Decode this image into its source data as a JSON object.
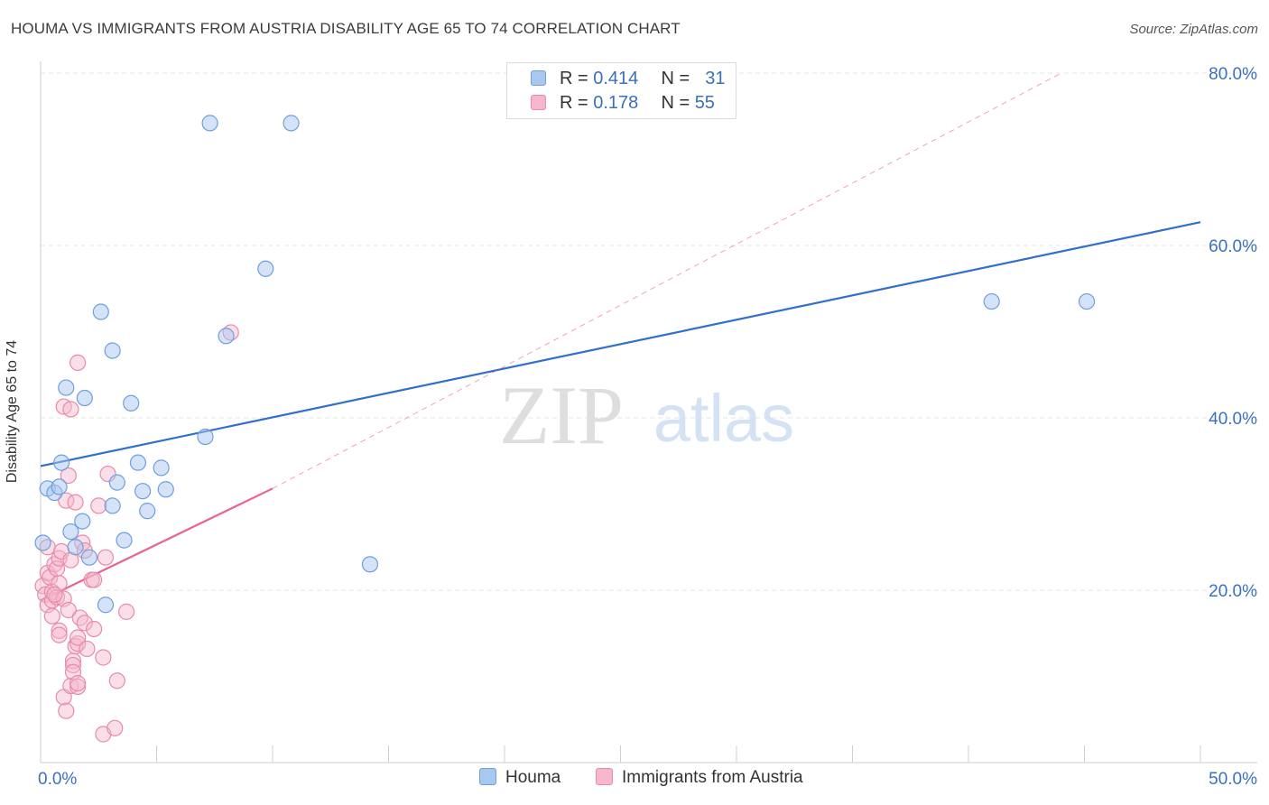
{
  "title": "HOUMA VS IMMIGRANTS FROM AUSTRIA DISABILITY AGE 65 TO 74 CORRELATION CHART",
  "source": "Source: ZipAtlas.com",
  "watermark": {
    "zip": "ZIP",
    "atlas": "atlas"
  },
  "colors": {
    "blue_fill": "#a9c8ef",
    "blue_stroke": "#6f9fdc",
    "blue_line": "#2f6fcd",
    "pink_fill": "#f5b8cb",
    "pink_stroke": "#e98aaa",
    "pink_line": "#e8658e",
    "grid": "#e4e4e4",
    "axis_text": "#3a70c0"
  },
  "legend": {
    "items": [
      {
        "r_label": "R =",
        "r_value": "0.414",
        "n_label": "N =",
        "n_value": "31"
      },
      {
        "r_label": "R =",
        "r_value": "0.178",
        "n_label": "N =",
        "n_value": "55"
      }
    ]
  },
  "bottom_legend": [
    "Houma",
    "Immigrants from Austria"
  ],
  "chart_data": {
    "type": "scatter",
    "title": "HOUMA VS IMMIGRANTS FROM AUSTRIA DISABILITY AGE 65 TO 74 CORRELATION CHART",
    "xlabel": "",
    "ylabel": "Disability Age 65 to 74",
    "xlim": [
      0,
      50
    ],
    "ylim": [
      0,
      80
    ],
    "x_tick_labels": [
      "0.0%",
      "50.0%"
    ],
    "y_ticks": [
      20,
      40,
      60,
      80
    ],
    "y_tick_labels": [
      "20.0%",
      "40.0%",
      "60.0%",
      "80.0%"
    ],
    "grid": true,
    "series": [
      {
        "name": "Houma",
        "color": "blue",
        "points": [
          [
            0.1,
            25.5
          ],
          [
            0.3,
            31.8
          ],
          [
            0.6,
            31.3
          ],
          [
            0.8,
            32.0
          ],
          [
            0.9,
            34.8
          ],
          [
            1.1,
            43.5
          ],
          [
            1.3,
            26.8
          ],
          [
            1.5,
            25.0
          ],
          [
            1.8,
            28.0
          ],
          [
            1.9,
            42.3
          ],
          [
            2.1,
            23.8
          ],
          [
            2.6,
            52.3
          ],
          [
            2.8,
            18.3
          ],
          [
            3.1,
            29.8
          ],
          [
            3.1,
            47.8
          ],
          [
            3.3,
            32.5
          ],
          [
            3.6,
            25.8
          ],
          [
            3.9,
            41.7
          ],
          [
            4.2,
            34.8
          ],
          [
            4.4,
            31.5
          ],
          [
            4.6,
            29.2
          ],
          [
            5.2,
            34.2
          ],
          [
            5.4,
            31.7
          ],
          [
            7.1,
            37.8
          ],
          [
            7.3,
            74.2
          ],
          [
            8.0,
            49.5
          ],
          [
            9.7,
            57.3
          ],
          [
            10.8,
            74.2
          ],
          [
            14.2,
            23.0
          ],
          [
            41.0,
            53.5
          ],
          [
            45.1,
            53.5
          ]
        ],
        "trend": {
          "x": [
            0,
            50
          ],
          "y": [
            34.4,
            62.7
          ],
          "style": "solid"
        }
      },
      {
        "name": "Immigrants from Austria",
        "color": "pink",
        "points": [
          [
            0.1,
            20.5
          ],
          [
            0.2,
            19.5
          ],
          [
            0.3,
            25.0
          ],
          [
            0.3,
            22.0
          ],
          [
            0.3,
            18.3
          ],
          [
            0.4,
            21.5
          ],
          [
            0.5,
            19.8
          ],
          [
            0.5,
            18.8
          ],
          [
            0.5,
            17.0
          ],
          [
            0.6,
            23.0
          ],
          [
            0.7,
            22.5
          ],
          [
            0.7,
            19.2
          ],
          [
            0.8,
            20.8
          ],
          [
            0.8,
            15.3
          ],
          [
            0.8,
            14.8
          ],
          [
            0.8,
            23.7
          ],
          [
            0.9,
            24.5
          ],
          [
            1.0,
            41.3
          ],
          [
            1.0,
            7.6
          ],
          [
            1.0,
            19.0
          ],
          [
            1.1,
            6.0
          ],
          [
            1.1,
            30.4
          ],
          [
            1.2,
            33.3
          ],
          [
            1.2,
            17.7
          ],
          [
            1.3,
            41.0
          ],
          [
            1.3,
            23.5
          ],
          [
            1.3,
            8.9
          ],
          [
            1.4,
            11.8
          ],
          [
            1.4,
            11.3
          ],
          [
            1.4,
            10.5
          ],
          [
            1.5,
            13.5
          ],
          [
            1.5,
            30.2
          ],
          [
            1.6,
            8.8
          ],
          [
            1.6,
            9.2
          ],
          [
            1.6,
            13.8
          ],
          [
            1.6,
            14.5
          ],
          [
            1.6,
            46.4
          ],
          [
            1.7,
            16.8
          ],
          [
            1.8,
            25.5
          ],
          [
            1.9,
            16.2
          ],
          [
            2.0,
            13.2
          ],
          [
            2.2,
            21.2
          ],
          [
            2.3,
            15.5
          ],
          [
            2.3,
            21.2
          ],
          [
            2.5,
            29.8
          ],
          [
            2.7,
            12.2
          ],
          [
            2.7,
            3.3
          ],
          [
            2.8,
            23.8
          ],
          [
            2.9,
            33.5
          ],
          [
            3.2,
            4.0
          ],
          [
            3.3,
            9.5
          ],
          [
            3.7,
            17.5
          ],
          [
            8.2,
            49.9
          ],
          [
            0.6,
            19.5
          ],
          [
            1.9,
            24.6
          ]
        ],
        "trend": {
          "x": [
            0,
            10
          ],
          "y": [
            18.8,
            31.8
          ],
          "style": "solid"
        },
        "trend_extension": {
          "x": [
            10,
            44
          ],
          "y": [
            31.8,
            80
          ],
          "style": "dashed"
        }
      }
    ]
  }
}
